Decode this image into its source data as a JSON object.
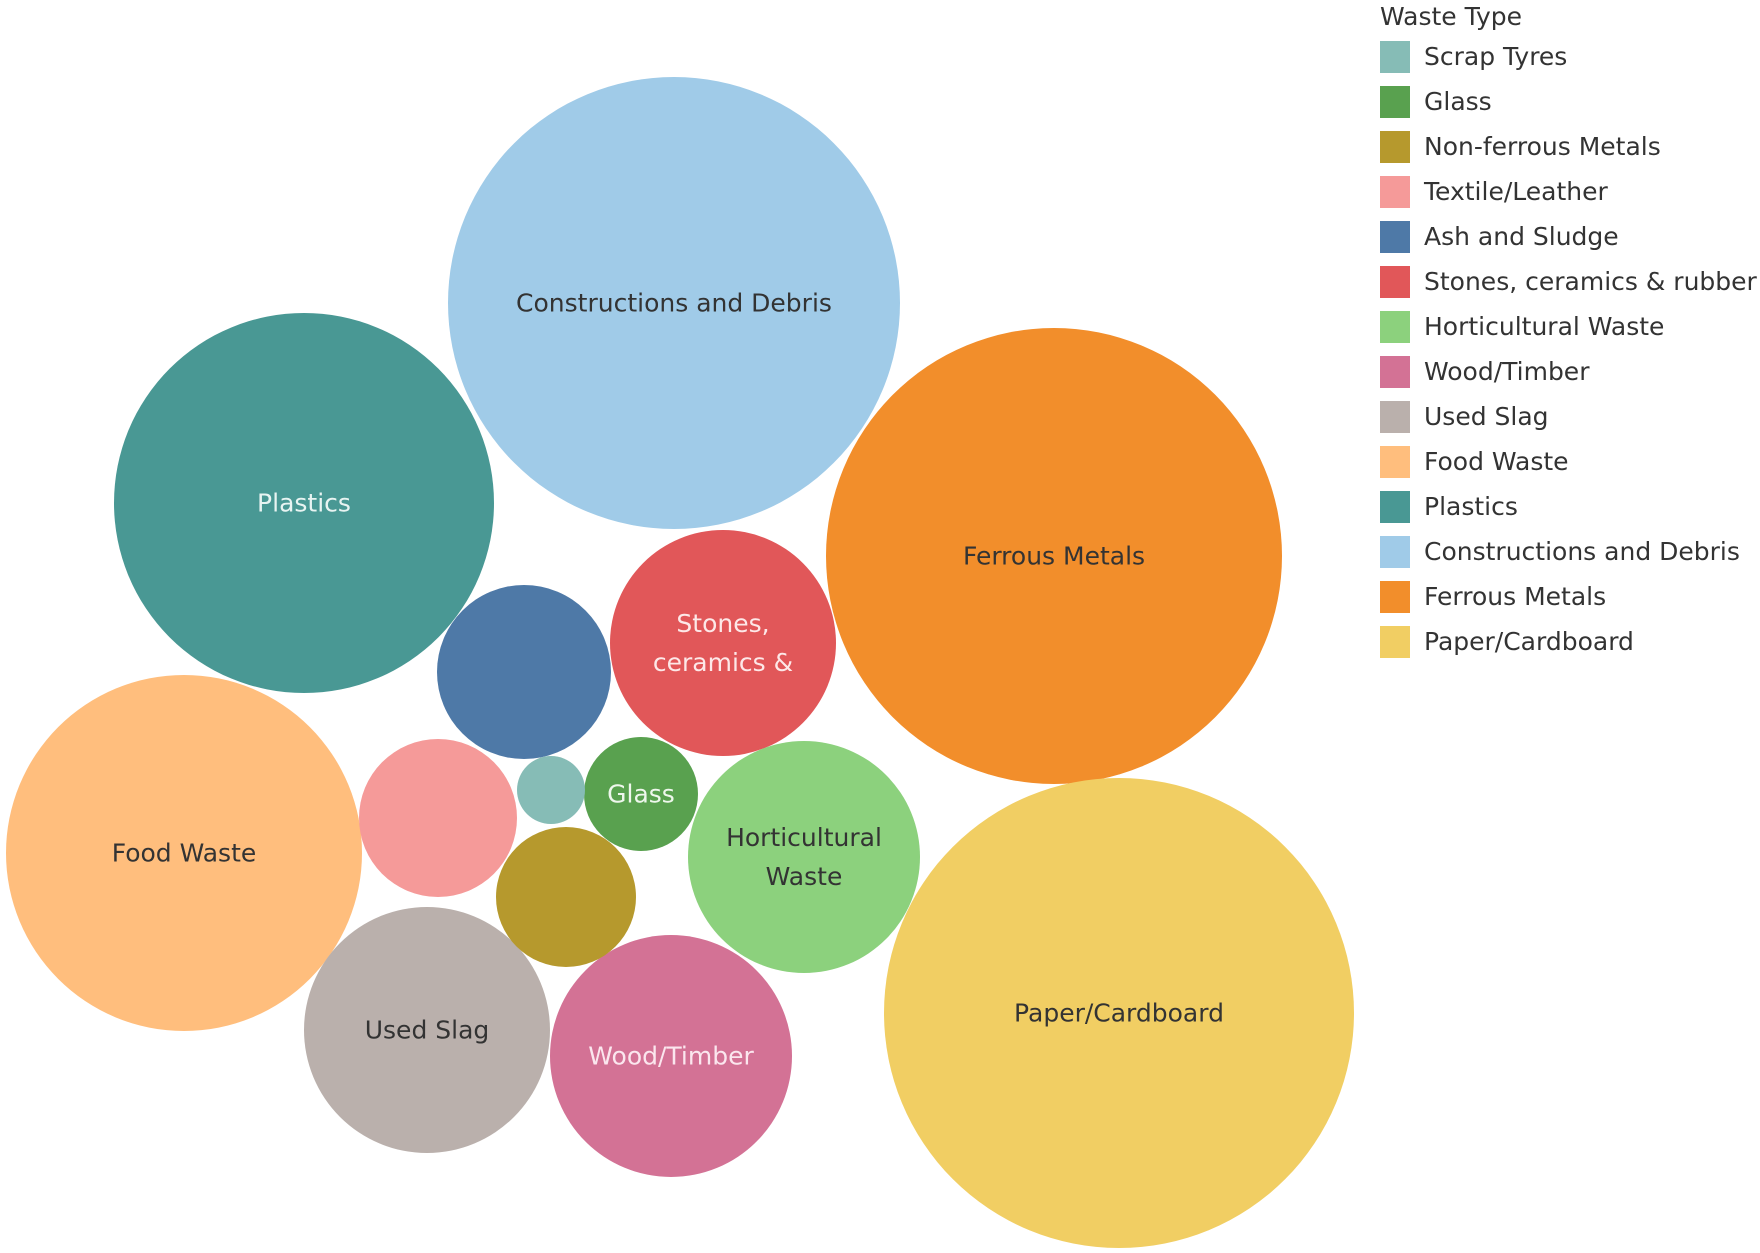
{
  "chart_data": {
    "type": "packed-bubble",
    "legend": {
      "title": "Waste Type",
      "placement": "top-right",
      "items": [
        {
          "name": "Scrap Tyres",
          "color": "#86BCB6"
        },
        {
          "name": "Glass",
          "color": "#59A14F"
        },
        {
          "name": "Non-ferrous Metals",
          "color": "#B6992D"
        },
        {
          "name": "Textile/Leather",
          "color": "#F59A99"
        },
        {
          "name": "Ash and Sludge",
          "color": "#4E79A7"
        },
        {
          "name": "Stones, ceramics & rubber",
          "color": "#E15759"
        },
        {
          "name": "Horticultural Waste",
          "color": "#8CD17D"
        },
        {
          "name": "Wood/Timber",
          "color": "#D37295"
        },
        {
          "name": "Used Slag",
          "color": "#BAB0AC"
        },
        {
          "name": "Food Waste",
          "color": "#FFBE7D"
        },
        {
          "name": "Plastics",
          "color": "#499894"
        },
        {
          "name": "Constructions and Debris",
          "color": "#A0CBE8"
        },
        {
          "name": "Ferrous Metals",
          "color": "#F28E2B"
        },
        {
          "name": "Paper/Cardboard",
          "color": "#F1CE63"
        }
      ]
    },
    "bubbles": [
      {
        "category": "Constructions and Debris",
        "label_lines": [
          "Constructions and Debris"
        ],
        "relative_size": 1.0,
        "label_color": "#333333"
      },
      {
        "category": "Ferrous Metals",
        "label_lines": [
          "Ferrous Metals"
        ],
        "relative_size": 1.0,
        "label_color": "#333333"
      },
      {
        "category": "Paper/Cardboard",
        "label_lines": [
          "Paper/Cardboard"
        ],
        "relative_size": 1.08,
        "label_color": "#333333"
      },
      {
        "category": "Plastics",
        "label_lines": [
          "Plastics"
        ],
        "relative_size": 0.71,
        "label_color": "#e8f4f2"
      },
      {
        "category": "Food Waste",
        "label_lines": [
          "Food Waste"
        ],
        "relative_size": 0.62,
        "label_color": "#333333"
      },
      {
        "category": "Stones, ceramics & rubber",
        "label_lines": [
          "Stones,",
          "ceramics &"
        ],
        "relative_size": 0.25,
        "label_color": "#fde8e8"
      },
      {
        "category": "Horticultural Waste",
        "label_lines": [
          "Horticultural",
          "Waste"
        ],
        "relative_size": 0.27,
        "label_color": "#333333"
      },
      {
        "category": "Wood/Timber",
        "label_lines": [
          "Wood/Timber"
        ],
        "relative_size": 0.29,
        "label_color": "#fbe6ee"
      },
      {
        "category": "Used Slag",
        "label_lines": [
          "Used Slag"
        ],
        "relative_size": 0.3,
        "label_color": "#333333"
      },
      {
        "category": "Ash and Sludge",
        "label_lines": [],
        "relative_size": 0.15,
        "label_color": "#ffffff"
      },
      {
        "category": "Textile/Leather",
        "label_lines": [],
        "relative_size": 0.12,
        "label_color": "#333333"
      },
      {
        "category": "Non-ferrous Metals",
        "label_lines": [],
        "relative_size": 0.095,
        "label_color": "#333333"
      },
      {
        "category": "Glass",
        "label_lines": [
          "Glass"
        ],
        "relative_size": 0.065,
        "label_color": "#eef7ec"
      },
      {
        "category": "Scrap Tyres",
        "label_lines": [],
        "relative_size": 0.022,
        "label_color": "#333333"
      }
    ]
  }
}
